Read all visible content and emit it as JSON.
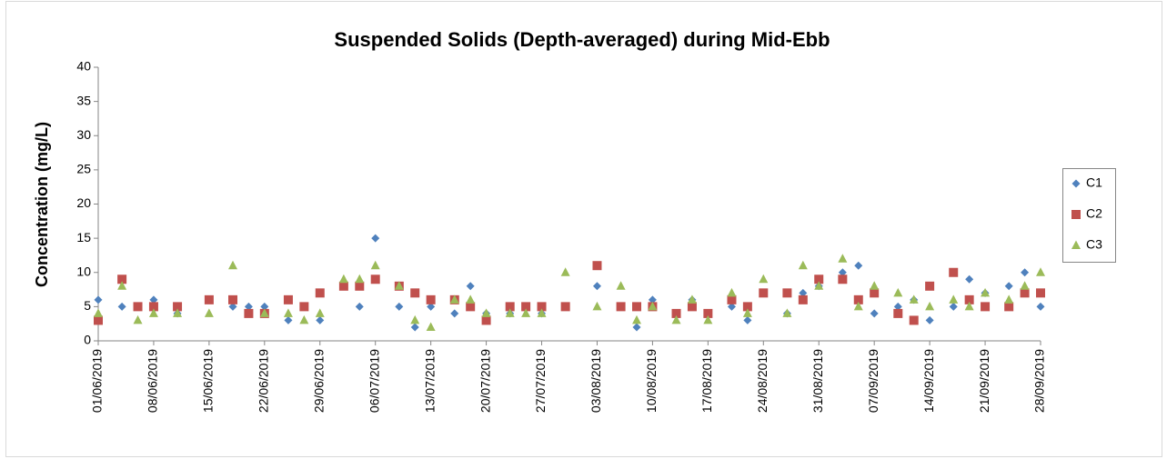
{
  "chart_data": {
    "type": "scatter",
    "title": "Suspended Solids (Depth-averaged) during Mid-Ebb",
    "y_label": "Concentration (mg/L)",
    "x": [
      "01/06/2019",
      "04/06/2019",
      "06/06/2019",
      "08/06/2019",
      "11/06/2019",
      "15/06/2019",
      "18/06/2019",
      "20/06/2019",
      "22/06/2019",
      "25/06/2019",
      "27/06/2019",
      "29/06/2019",
      "02/07/2019",
      "04/07/2019",
      "06/07/2019",
      "09/07/2019",
      "11/07/2019",
      "13/07/2019",
      "16/07/2019",
      "18/07/2019",
      "20/07/2019",
      "23/07/2019",
      "25/07/2019",
      "27/07/2019",
      "30/07/2019",
      "03/08/2019",
      "06/08/2019",
      "08/08/2019",
      "10/08/2019",
      "13/08/2019",
      "15/08/2019",
      "17/08/2019",
      "20/08/2019",
      "22/08/2019",
      "24/08/2019",
      "27/08/2019",
      "29/08/2019",
      "31/08/2019",
      "03/09/2019",
      "05/09/2019",
      "07/09/2019",
      "10/09/2019",
      "12/09/2019",
      "14/09/2019",
      "17/09/2019",
      "19/09/2019",
      "21/09/2019",
      "24/09/2019",
      "26/09/2019",
      "28/09/2019"
    ],
    "series": [
      {
        "name": "C1",
        "color": "#4f81bd",
        "marker": "diamond",
        "values": [
          6,
          5,
          null,
          6,
          4,
          null,
          5,
          5,
          5,
          3,
          null,
          3,
          null,
          5,
          15,
          5,
          2,
          5,
          4,
          8,
          4,
          4,
          null,
          4,
          null,
          8,
          null,
          2,
          6,
          null,
          6,
          null,
          5,
          3,
          null,
          4,
          7,
          8,
          10,
          11,
          4,
          5,
          6,
          3,
          5,
          9,
          7,
          8,
          10,
          5
        ]
      },
      {
        "name": "C2",
        "color": "#c0504d",
        "marker": "square",
        "values": [
          3,
          9,
          5,
          5,
          5,
          6,
          6,
          4,
          4,
          6,
          5,
          7,
          8,
          8,
          9,
          8,
          7,
          6,
          6,
          5,
          3,
          5,
          5,
          5,
          5,
          11,
          5,
          5,
          5,
          4,
          5,
          4,
          6,
          5,
          7,
          7,
          6,
          9,
          9,
          6,
          7,
          4,
          3,
          8,
          10,
          6,
          5,
          5,
          7,
          7
        ]
      },
      {
        "name": "C3",
        "color": "#9bbb59",
        "marker": "triangle",
        "values": [
          4,
          8,
          3,
          4,
          4,
          4,
          11,
          null,
          4,
          4,
          3,
          4,
          9,
          9,
          11,
          8,
          3,
          2,
          6,
          6,
          4,
          4,
          4,
          4,
          10,
          5,
          8,
          3,
          5,
          3,
          6,
          3,
          7,
          4,
          9,
          4,
          11,
          8,
          12,
          5,
          8,
          7,
          6,
          5,
          6,
          5,
          7,
          6,
          8,
          10
        ]
      }
    ],
    "xlim": [
      "01/06/2019",
      "28/09/2019"
    ],
    "xticks": [
      "01/06/2019",
      "08/06/2019",
      "15/06/2019",
      "22/06/2019",
      "29/06/2019",
      "06/07/2019",
      "13/07/2019",
      "20/07/2019",
      "27/07/2019",
      "03/08/2019",
      "10/08/2019",
      "17/08/2019",
      "24/08/2019",
      "31/08/2019",
      "07/09/2019",
      "14/09/2019",
      "21/09/2019",
      "28/09/2019"
    ],
    "ylim": [
      0,
      40
    ],
    "yticks": [
      0,
      5,
      10,
      15,
      20,
      25,
      30,
      35,
      40
    ],
    "grid": false,
    "legend": "right"
  }
}
